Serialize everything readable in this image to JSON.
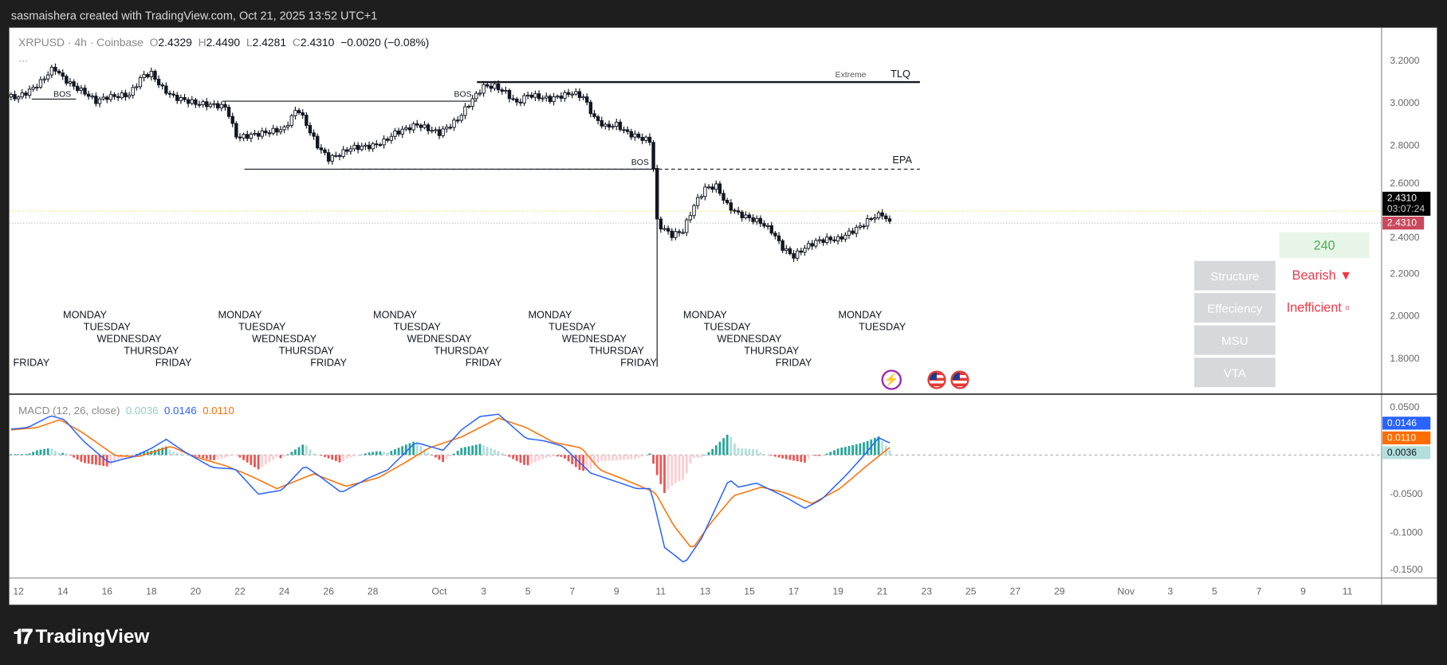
{
  "header": {
    "title": "sasmaishera created with TradingView.com, Oct 21, 2025 13:52 UTC+1"
  },
  "legend": {
    "symbol": "XRPUSD · 4h · Coinbase",
    "o_label": "O",
    "o": "2.4329",
    "h_label": "H",
    "h": "2.4490",
    "l_label": "L",
    "l": "2.4281",
    "c_label": "C",
    "c": "2.4310",
    "change": "−0.0020 (−0.08%)",
    "more": "..."
  },
  "price_axis": [
    "3.2000",
    "3.0000",
    "2.8000",
    "2.6000",
    "2.4000",
    "2.2000",
    "2.0000",
    "1.8000"
  ],
  "price_badges": {
    "last": "2.4310",
    "countdown": "03:07:24",
    "close": "2.4310"
  },
  "annotations": {
    "bos1": "BOS",
    "bos2": "BOS",
    "bos3": "BOS",
    "tlq": "TLQ",
    "extreme": "Extreme",
    "epa": "EPA"
  },
  "panel": {
    "timeframe": "240",
    "rows": [
      {
        "label": "Structure",
        "value": "Bearish ▼"
      },
      {
        "label": "Effeciency",
        "value": "Inefficient ▫"
      },
      {
        "label": "MSU",
        "value": ""
      },
      {
        "label": "VTA",
        "value": ""
      }
    ]
  },
  "macd": {
    "title": "MACD (12, 26, close)",
    "hist": "0.0036",
    "macd": "0.0146",
    "signal": "0.0110",
    "axis": [
      "0.0500",
      "-0.0500",
      "-0.1000",
      "-0.1500"
    ]
  },
  "time_axis": [
    {
      "d": 0,
      "t": "12"
    },
    {
      "d": 2,
      "t": "14"
    },
    {
      "d": 4,
      "t": "16"
    },
    {
      "d": 6,
      "t": "18"
    },
    {
      "d": 8,
      "t": "20"
    },
    {
      "d": 10,
      "t": "22"
    },
    {
      "d": 12,
      "t": "24"
    },
    {
      "d": 14,
      "t": "26"
    },
    {
      "d": 16,
      "t": "28"
    },
    {
      "d": 19,
      "t": "Oct"
    },
    {
      "d": 21,
      "t": "3"
    },
    {
      "d": 23,
      "t": "5"
    },
    {
      "d": 25,
      "t": "7"
    },
    {
      "d": 27,
      "t": "9"
    },
    {
      "d": 29,
      "t": "11"
    },
    {
      "d": 31,
      "t": "13"
    },
    {
      "d": 33,
      "t": "15"
    },
    {
      "d": 35,
      "t": "17"
    },
    {
      "d": 37,
      "t": "19"
    },
    {
      "d": 39,
      "t": "21"
    },
    {
      "d": 41,
      "t": "23"
    },
    {
      "d": 43,
      "t": "25"
    },
    {
      "d": 45,
      "t": "27"
    },
    {
      "d": 47,
      "t": "29"
    },
    {
      "d": 50,
      "t": "Nov"
    },
    {
      "d": 52,
      "t": "3"
    },
    {
      "d": 54,
      "t": "5"
    },
    {
      "d": 56,
      "t": "7"
    },
    {
      "d": 58,
      "t": "9"
    },
    {
      "d": 60,
      "t": "11"
    }
  ],
  "day_labels": [
    {
      "d": 0,
      "labels": [
        "FRIDAY"
      ]
    },
    {
      "d": 3,
      "labels": [
        "MONDAY",
        "TUESDAY",
        "WEDNESDAY",
        "THURSDAY",
        "FRIDAY"
      ]
    },
    {
      "d": 10,
      "labels": [
        "MONDAY",
        "TUESDAY",
        "WEDNESDAY",
        "THURSDAY",
        "FRIDAY"
      ]
    },
    {
      "d": 17,
      "labels": [
        "MONDAY",
        "TUESDAY",
        "WEDNESDAY",
        "THURSDAY",
        "FRIDAY"
      ]
    },
    {
      "d": 24,
      "labels": [
        "MONDAY",
        "TUESDAY",
        "WEDNESDAY",
        "THURSDAY",
        "FRIDAY"
      ]
    },
    {
      "d": 31,
      "labels": [
        "MONDAY",
        "TUESDAY",
        "WEDNESDAY",
        "THURSDAY",
        "FRIDAY"
      ]
    },
    {
      "d": 38,
      "labels": [
        "MONDAY",
        "TUESDAY"
      ]
    }
  ],
  "brand": {
    "logo": "TradingView"
  },
  "colors": {
    "up": "#ffffff",
    "down": "#131722",
    "macd": "#2962ff",
    "signal": "#ff6d00",
    "hist_up": "#26a69a",
    "hist_up_weak": "#b2dfdb",
    "hist_dn": "#ef5350",
    "hist_dn_weak": "#ffcdd2",
    "bearish": "#f23645",
    "tf_green": "#4caf50"
  },
  "chart_data": {
    "type": "candlestick",
    "title": "XRPUSD · 4h · Coinbase",
    "x_unit": "days since Sep 12 2025",
    "ylim": [
      1.7,
      3.3
    ],
    "closes": [
      [
        0,
        3.03
      ],
      [
        0.5,
        3.06
      ],
      [
        1,
        3.1
      ],
      [
        1.6,
        3.17
      ],
      [
        2,
        3.12
      ],
      [
        2.5,
        3.08
      ],
      [
        3,
        3.05
      ],
      [
        3.5,
        3.01
      ],
      [
        4,
        3.03
      ],
      [
        5,
        3.04
      ],
      [
        5.6,
        3.13
      ],
      [
        6,
        3.14
      ],
      [
        6.5,
        3.07
      ],
      [
        7,
        3.03
      ],
      [
        8,
        3.0
      ],
      [
        9,
        2.99
      ],
      [
        9.4,
        2.98
      ],
      [
        9.8,
        2.85
      ],
      [
        10,
        2.84
      ],
      [
        11,
        2.86
      ],
      [
        12,
        2.88
      ],
      [
        12.6,
        2.98
      ],
      [
        13,
        2.9
      ],
      [
        13.5,
        2.8
      ],
      [
        14,
        2.74
      ],
      [
        14.5,
        2.76
      ],
      [
        15,
        2.79
      ],
      [
        16,
        2.8
      ],
      [
        16.5,
        2.82
      ],
      [
        17,
        2.86
      ],
      [
        18,
        2.9
      ],
      [
        18.5,
        2.88
      ],
      [
        19,
        2.86
      ],
      [
        19.8,
        2.92
      ],
      [
        20.5,
        3.02
      ],
      [
        21,
        3.08
      ],
      [
        21.5,
        3.08
      ],
      [
        22,
        3.05
      ],
      [
        22.5,
        3.0
      ],
      [
        23,
        3.04
      ],
      [
        23.5,
        3.03
      ],
      [
        24,
        3.02
      ],
      [
        25,
        3.05
      ],
      [
        25.5,
        3.03
      ],
      [
        26,
        2.93
      ],
      [
        26.5,
        2.89
      ],
      [
        27,
        2.9
      ],
      [
        27.5,
        2.86
      ],
      [
        28,
        2.84
      ],
      [
        28.6,
        2.82
      ],
      [
        28.8,
        2.45
      ],
      [
        29,
        2.42
      ],
      [
        29.5,
        2.38
      ],
      [
        30,
        2.4
      ],
      [
        30.5,
        2.52
      ],
      [
        31,
        2.6
      ],
      [
        31.5,
        2.61
      ],
      [
        32,
        2.52
      ],
      [
        32.5,
        2.48
      ],
      [
        33,
        2.46
      ],
      [
        33.5,
        2.44
      ],
      [
        34,
        2.4
      ],
      [
        34.5,
        2.32
      ],
      [
        35,
        2.28
      ],
      [
        35.5,
        2.32
      ],
      [
        36,
        2.35
      ],
      [
        36.5,
        2.36
      ],
      [
        37,
        2.36
      ],
      [
        37.5,
        2.39
      ],
      [
        38,
        2.42
      ],
      [
        38.5,
        2.46
      ],
      [
        39,
        2.48
      ],
      [
        39.2,
        2.45
      ],
      [
        39.4,
        2.431
      ]
    ],
    "crash_low": {
      "d": 28.8,
      "price": 1.76
    },
    "levels": [
      {
        "name": "BOS",
        "price": 3.02,
        "from": 0.6,
        "to": 2.6
      },
      {
        "name": "BOS",
        "price": 3.01,
        "from": 9.2,
        "to": 20.7
      },
      {
        "name": "TLQ",
        "price": 3.1,
        "from": 20.7,
        "to": 40.7
      },
      {
        "name": "BOS",
        "price": 2.69,
        "from": 10.2,
        "to": 28.8
      },
      {
        "name": "EPA",
        "price": 2.69,
        "from": 14.6,
        "to": 40.7,
        "dashed": true
      }
    ],
    "macd_line": [
      [
        -0.33,
        0.033
      ],
      [
        0.42,
        0.035
      ],
      [
        1.46,
        0.05
      ],
      [
        2.08,
        0.045
      ],
      [
        2.92,
        0.018
      ],
      [
        4.08,
        -0.01
      ],
      [
        5.21,
        -0.002
      ],
      [
        6.04,
        0.009
      ],
      [
        6.67,
        0.02
      ],
      [
        7.5,
        0.004
      ],
      [
        8.75,
        -0.016
      ],
      [
        9.79,
        -0.018
      ],
      [
        10.83,
        -0.05
      ],
      [
        11.88,
        -0.045
      ],
      [
        12.92,
        -0.014
      ],
      [
        13.54,
        -0.026
      ],
      [
        14.58,
        -0.048
      ],
      [
        15.83,
        -0.029
      ],
      [
        16.67,
        -0.019
      ],
      [
        17.92,
        0.016
      ],
      [
        19.17,
        0.006
      ],
      [
        20,
        0.032
      ],
      [
        20.83,
        0.049
      ],
      [
        21.67,
        0.052
      ],
      [
        22.92,
        0.021
      ],
      [
        23.75,
        0.018
      ],
      [
        24.58,
        0.011
      ],
      [
        25.83,
        -0.023
      ],
      [
        26.67,
        -0.031
      ],
      [
        27.92,
        -0.043
      ],
      [
        28.54,
        -0.043
      ],
      [
        29.17,
        -0.118
      ],
      [
        30.08,
        -0.138
      ],
      [
        30.83,
        -0.107
      ],
      [
        32.08,
        -0.031
      ],
      [
        32.5,
        -0.041
      ],
      [
        33.33,
        -0.036
      ],
      [
        34.58,
        -0.053
      ],
      [
        35.5,
        -0.068
      ],
      [
        36.25,
        -0.057
      ],
      [
        37.29,
        -0.028
      ],
      [
        38.13,
        -0.002
      ],
      [
        38.83,
        0.022
      ],
      [
        39.4,
        0.0146
      ]
    ],
    "signal_line": [
      [
        -0.33,
        0.032
      ],
      [
        0.83,
        0.035
      ],
      [
        1.88,
        0.045
      ],
      [
        2.92,
        0.028
      ],
      [
        4.38,
        -0.001
      ],
      [
        5.42,
        -0.002
      ],
      [
        6.88,
        0.011
      ],
      [
        7.92,
        -0.002
      ],
      [
        9.38,
        -0.014
      ],
      [
        10.42,
        -0.026
      ],
      [
        11.67,
        -0.043
      ],
      [
        13.33,
        -0.024
      ],
      [
        14.79,
        -0.04
      ],
      [
        16.25,
        -0.029
      ],
      [
        17.5,
        -0.009
      ],
      [
        18.54,
        0.009
      ],
      [
        20,
        0.023
      ],
      [
        21.67,
        0.047
      ],
      [
        22.92,
        0.035
      ],
      [
        24.17,
        0.016
      ],
      [
        25.42,
        0.009
      ],
      [
        26.25,
        -0.019
      ],
      [
        27.5,
        -0.033
      ],
      [
        28.75,
        -0.048
      ],
      [
        29.58,
        -0.09
      ],
      [
        30.42,
        -0.12
      ],
      [
        31.25,
        -0.087
      ],
      [
        32.29,
        -0.052
      ],
      [
        33.54,
        -0.041
      ],
      [
        34.58,
        -0.048
      ],
      [
        35.83,
        -0.062
      ],
      [
        37.08,
        -0.043
      ],
      [
        38.33,
        -0.013
      ],
      [
        39.4,
        0.011
      ]
    ],
    "macd_ylim": [
      -0.16,
      0.06
    ]
  }
}
